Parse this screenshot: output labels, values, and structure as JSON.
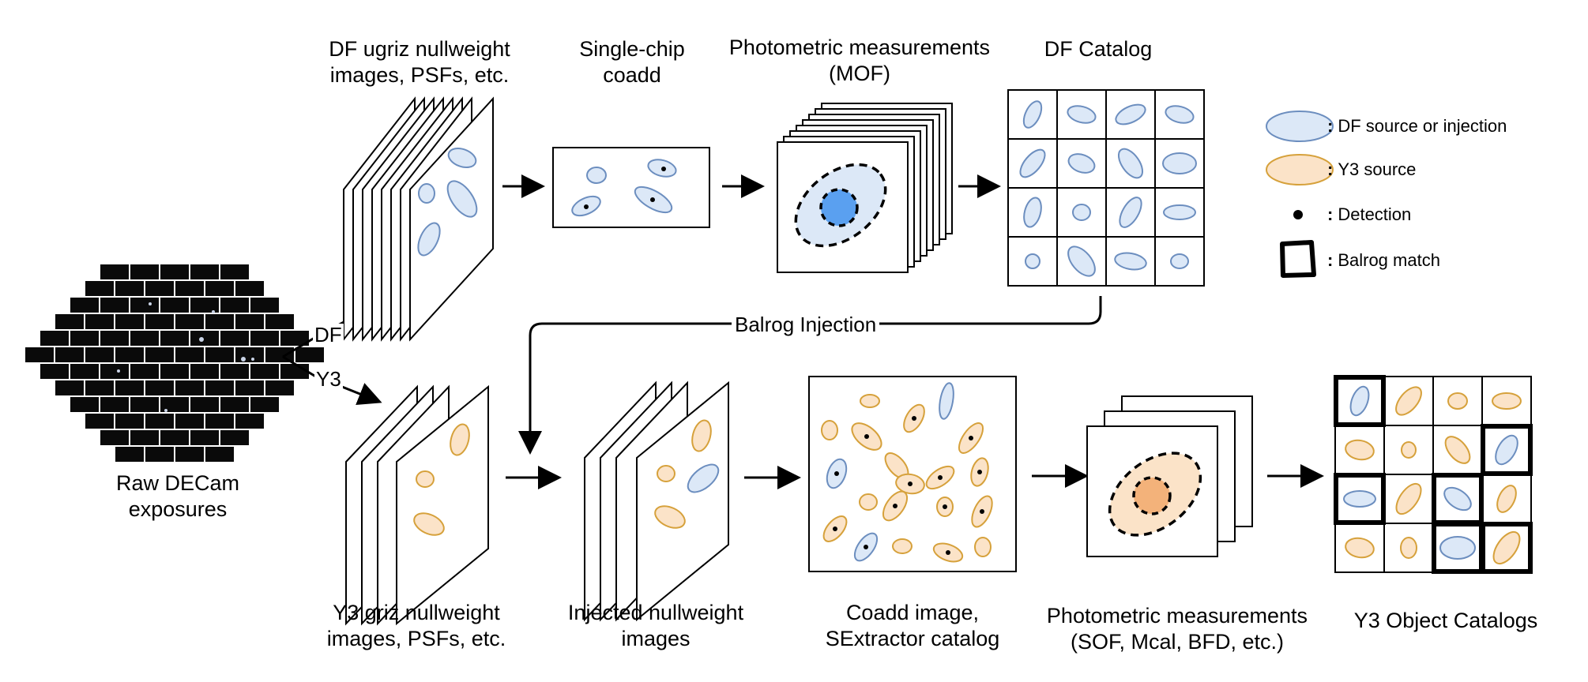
{
  "colors": {
    "df_fill": "#dce8f7",
    "df_stroke": "#6c8ebf",
    "y3_fill": "#fbe3c8",
    "y3_stroke": "#d6a13b",
    "measure_blue": "#5aa0f0",
    "measure_orange": "#f3b27a",
    "detection": "#000000"
  },
  "labels": {
    "raw": [
      "Raw DECam",
      "exposures"
    ],
    "df_images": [
      "DF ugriz nullweight",
      "images, PSFs, etc."
    ],
    "single_chip": [
      "Single-chip",
      "coadd"
    ],
    "mof": [
      "Photometric measurements",
      "(MOF)"
    ],
    "df_catalog": [
      "DF Catalog"
    ],
    "y3_images": [
      "Y3 griz nullweight",
      "images, PSFs, etc."
    ],
    "injected": [
      "Injected nullweight",
      "images"
    ],
    "coadd_sex": [
      "Coadd image,",
      "SExtractor catalog"
    ],
    "sof": [
      "Photometric measurements",
      "(SOF, Mcal, BFD, etc.)"
    ],
    "y3_catalogs": [
      "Y3 Object Catalogs"
    ],
    "branch_df": "DF",
    "branch_y3": "Y3",
    "balrog_injection": "Balrog Injection"
  },
  "legend": [
    {
      "marker": "df-ellipse",
      "colon": ":",
      "text": "DF source or injection"
    },
    {
      "marker": "y3-ellipse",
      "colon": ":",
      "text": "Y3 source"
    },
    {
      "marker": "detection-dot",
      "colon": ":",
      "text": "Detection"
    },
    {
      "marker": "balrog-box",
      "colon": ":",
      "text": "Balrog match"
    }
  ]
}
